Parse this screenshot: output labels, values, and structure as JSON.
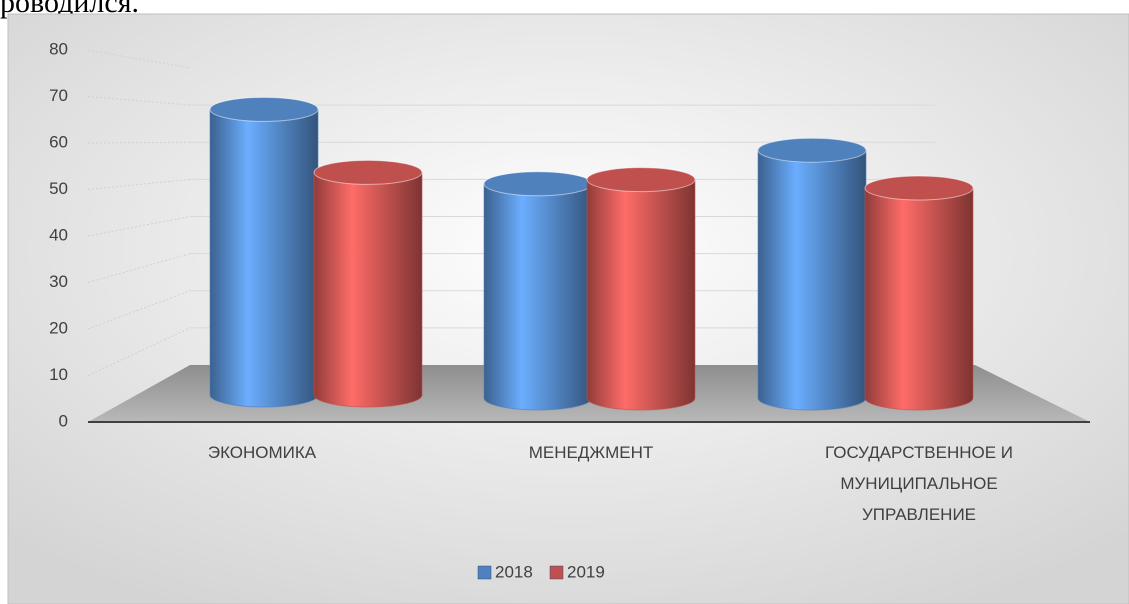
{
  "document_text": "роводился.",
  "chart_data": {
    "type": "cylinder-bar",
    "categories": [
      "ЭКОНОМИКА",
      "МЕНЕДЖМЕНТ",
      "ГОСУДАРСТВЕННОЕ И МУНИЦИПАЛЬНОЕ УПРАВЛЕНИЕ"
    ],
    "series": [
      {
        "name": "2018",
        "color": "#4f81bd",
        "values": [
          68,
          51,
          59
        ]
      },
      {
        "name": "2019",
        "color": "#c0504d",
        "values": [
          53,
          52,
          50
        ]
      }
    ],
    "ylim": [
      0,
      80
    ],
    "yticks": [
      0,
      10,
      20,
      30,
      40,
      50,
      60,
      70,
      80
    ],
    "grid": true,
    "legend": "bottom"
  }
}
